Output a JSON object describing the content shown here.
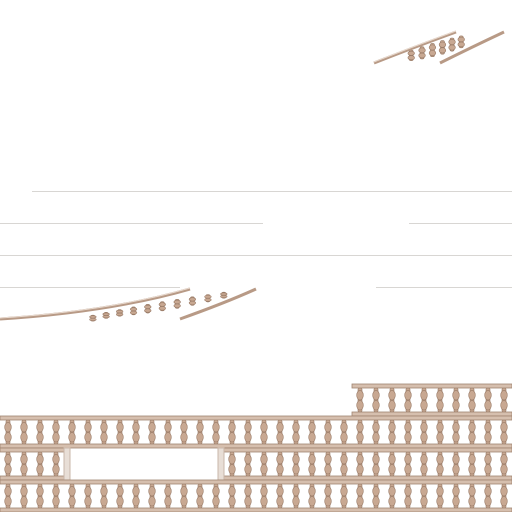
{
  "scene": {
    "kind": "tileset-sheet",
    "tile_theme": "stone-balustrade",
    "colors": {
      "background": "#ffffff",
      "rail": "#d6bfae",
      "rail_edge": "#a08470",
      "baluster": "#c8a892",
      "baluster_edge": "#987a66",
      "guide_line": "#d8d6d3",
      "gap_edge": "#e8ded6"
    }
  }
}
